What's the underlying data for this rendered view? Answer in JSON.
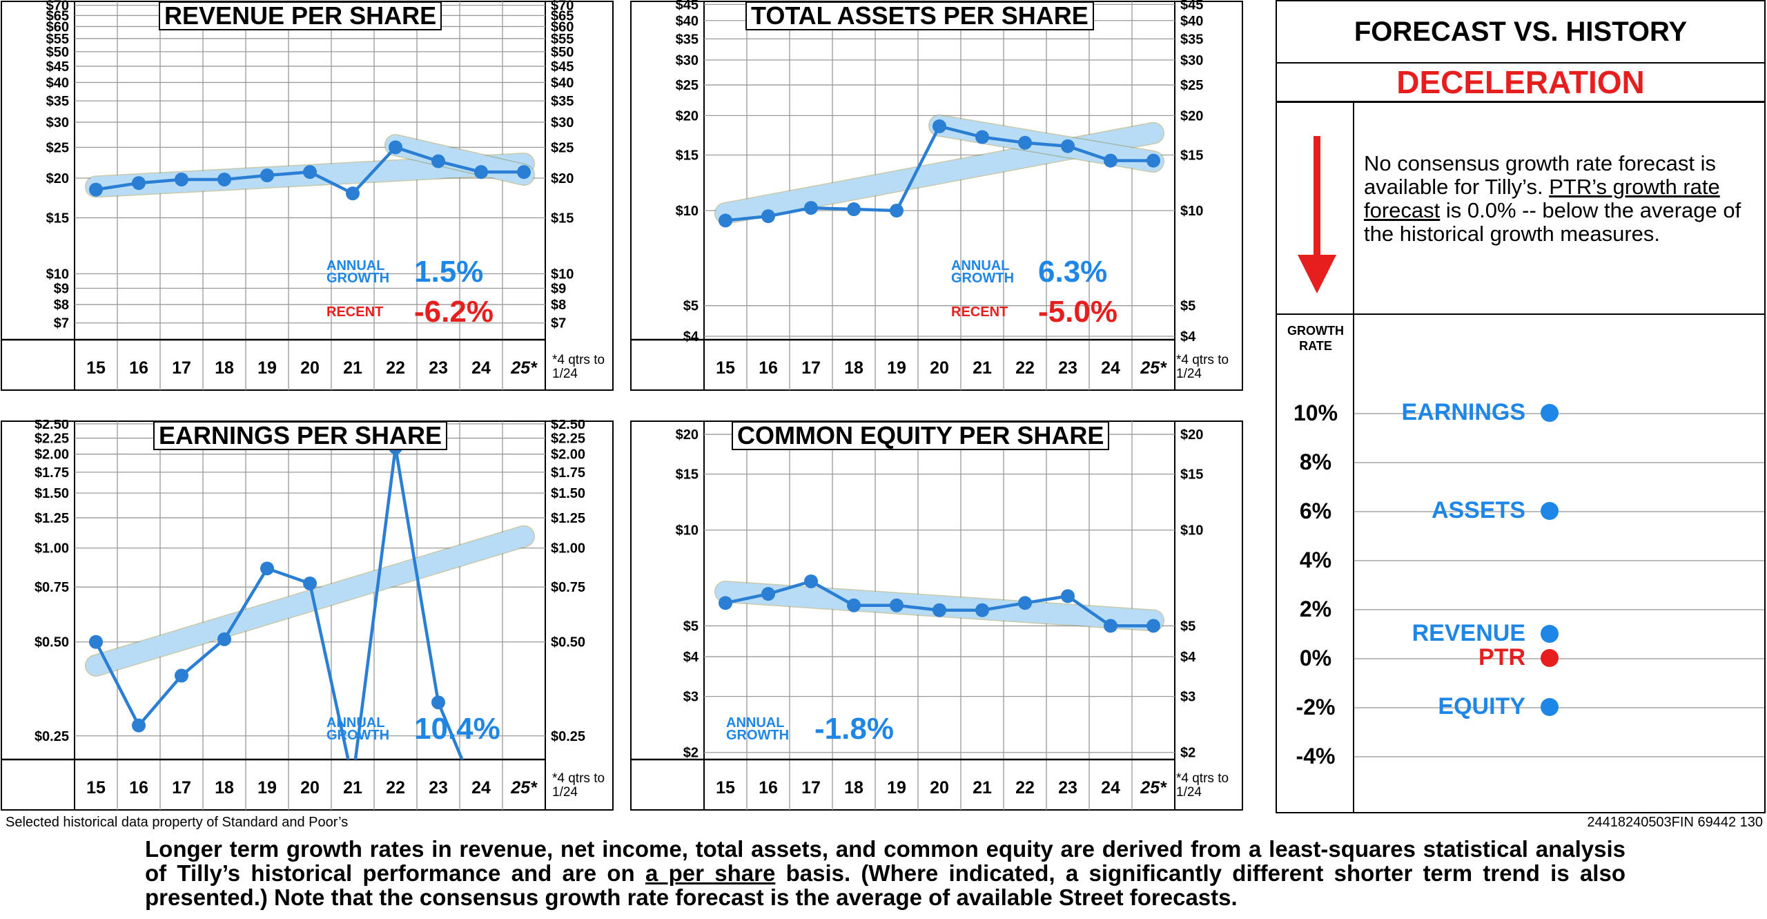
{
  "chart_data": [
    {
      "id": "revenue",
      "type": "line",
      "title": "REVENUE PER SHARE",
      "scale": "log",
      "ylim": [
        6.2,
        72
      ],
      "yticks": [
        7,
        8,
        9,
        10,
        15,
        20,
        25,
        30,
        35,
        40,
        45,
        50,
        55,
        60,
        65,
        70
      ],
      "ytick_labels": [
        "$7",
        "$8",
        "$9",
        "$10",
        "$15",
        "$20",
        "$25",
        "$30",
        "$35",
        "$40",
        "$45",
        "$50",
        "$55",
        "$60",
        "$65",
        "$70"
      ],
      "categories": [
        "15",
        "16",
        "17",
        "18",
        "19",
        "20",
        "21",
        "22",
        "23",
        "24",
        "25*"
      ],
      "series": [
        {
          "values": [
            18.4,
            19.3,
            19.8,
            19.8,
            20.4,
            20.9,
            17.9,
            25.0,
            22.6,
            20.9,
            20.9
          ]
        }
      ],
      "trend": [
        [
          0,
          18.8
        ],
        [
          10,
          22.2
        ]
      ],
      "trend2": [
        [
          7,
          25.4
        ],
        [
          10,
          20.5
        ]
      ],
      "annual_growth_label": "ANNUAL GROWTH",
      "annual_growth": "1.5%",
      "recent_label": "RECENT",
      "recent": "-6.2%",
      "note": "*4 qtrs to 1/24"
    },
    {
      "id": "assets",
      "type": "line",
      "title": "TOTAL ASSETS PER SHARE",
      "scale": "log",
      "ylim": [
        3.9,
        46
      ],
      "yticks": [
        4,
        5,
        10,
        15,
        20,
        25,
        30,
        35,
        40,
        45
      ],
      "ytick_labels": [
        "$4",
        "$5",
        "$10",
        "$15",
        "$20",
        "$25",
        "$30",
        "$35",
        "$40",
        "$45"
      ],
      "categories": [
        "15",
        "16",
        "17",
        "18",
        "19",
        "20",
        "21",
        "22",
        "23",
        "24",
        "25*"
      ],
      "series": [
        {
          "values": [
            9.3,
            9.6,
            10.2,
            10.1,
            10.0,
            18.5,
            17.1,
            16.4,
            16.0,
            14.4,
            14.4
          ]
        }
      ],
      "trend": [
        [
          0,
          9.8
        ],
        [
          10,
          17.6
        ]
      ],
      "trend2": [
        [
          5,
          18.6
        ],
        [
          10,
          14.3
        ]
      ],
      "annual_growth_label": "ANNUAL GROWTH",
      "annual_growth": "6.3%",
      "recent_label": "RECENT",
      "recent": "-5.0%",
      "note": "*4 qtrs to 1/24"
    },
    {
      "id": "earnings",
      "type": "line",
      "title": "EARNINGS PER SHARE",
      "scale": "log",
      "ylim": [
        0.21,
        2.55
      ],
      "yticks": [
        0.25,
        0.5,
        0.75,
        1.0,
        1.25,
        1.5,
        1.75,
        2.0,
        2.25,
        2.5
      ],
      "ytick_labels": [
        "$0.25",
        "$0.50",
        "$0.75",
        "$1.00",
        "$1.25",
        "$1.50",
        "$1.75",
        "$2.00",
        "$2.25",
        "$2.50"
      ],
      "categories": [
        "15",
        "16",
        "17",
        "18",
        "19",
        "20",
        "21",
        "22",
        "23",
        "24",
        "25*"
      ],
      "series": [
        {
          "values": [
            0.5,
            0.27,
            0.39,
            0.51,
            0.86,
            0.77,
            0.18,
            2.1,
            0.32,
            0.15,
            null
          ]
        }
      ],
      "trend": [
        [
          0,
          0.42
        ],
        [
          10,
          1.09
        ]
      ],
      "annual_growth_label": "ANNUAL GROWTH",
      "annual_growth": "10.4%",
      "note": "*4 qtrs to 1/24"
    },
    {
      "id": "equity",
      "type": "line",
      "title": "COMMON EQUITY PER SHARE",
      "scale": "log",
      "ylim": [
        1.9,
        22
      ],
      "yticks": [
        2,
        3,
        4,
        5,
        10,
        15,
        20
      ],
      "ytick_labels": [
        "$2",
        "$3",
        "$4",
        "$5",
        "$10",
        "$15",
        "$20"
      ],
      "categories": [
        "15",
        "16",
        "17",
        "18",
        "19",
        "20",
        "21",
        "22",
        "23",
        "24",
        "25*"
      ],
      "series": [
        {
          "values": [
            5.9,
            6.3,
            6.9,
            5.8,
            5.8,
            5.6,
            5.6,
            5.9,
            6.2,
            5.0,
            5.0
          ]
        }
      ],
      "trend": [
        [
          0,
          6.4
        ],
        [
          10,
          5.2
        ]
      ],
      "annual_growth_label": "ANNUAL GROWTH",
      "annual_growth": "-1.8%",
      "note": "*4 qtrs to 1/24"
    },
    {
      "id": "forecast",
      "type": "scatter",
      "title": "FORECAST VS. HISTORY",
      "ylabel": "GROWTH RATE",
      "ylim": [
        -5,
        11
      ],
      "yticks": [
        10,
        8,
        6,
        4,
        2,
        0,
        -2,
        -4
      ],
      "ytick_labels": [
        "10%",
        "8%",
        "6%",
        "4%",
        "2%",
        "0%",
        "-2%",
        "-4%"
      ],
      "points": [
        {
          "name": "EARNINGS",
          "value": 10.0,
          "color": "#1e86e6"
        },
        {
          "name": "ASSETS",
          "value": 6.0,
          "color": "#1e86e6"
        },
        {
          "name": "REVENUE",
          "value": 1.0,
          "color": "#1e86e6"
        },
        {
          "name": "PTR",
          "value": 0.0,
          "color": "#e61e1e"
        },
        {
          "name": "EQUITY",
          "value": -2.0,
          "color": "#1e86e6"
        }
      ]
    }
  ],
  "forecast": {
    "title": "FORECAST VS. HISTORY",
    "verdict": "DECELERATION",
    "text_1": "No consensus growth rate forecast is available for Tilly’s. ",
    "text_link": "PTR’s growth rate forecast",
    "text_2": " is 0.0% --   below the average of the historical growth measures.",
    "growth_rate_label": "GROWTH RATE"
  },
  "source_note": "Selected historical data property of Standard and Poor’s",
  "code": "24418240503FIN 69442 130",
  "footer": {
    "part1": "Longer term growth rates in revenue, net income, total assets, and common equity are derived from a least-squares  statistical analysis of Tilly’s historical performance and are on ",
    "part_u": "a per share",
    "part2": " basis. (Where indicated, a significantly different shorter term trend is also presented.) Note that the consensus growth rate forecast is the average of available Street forecasts."
  },
  "colors": {
    "line": "#2a7fd4",
    "band": "#b8dcf6",
    "accent": "#1e86e6",
    "alert": "#e61e1e"
  }
}
